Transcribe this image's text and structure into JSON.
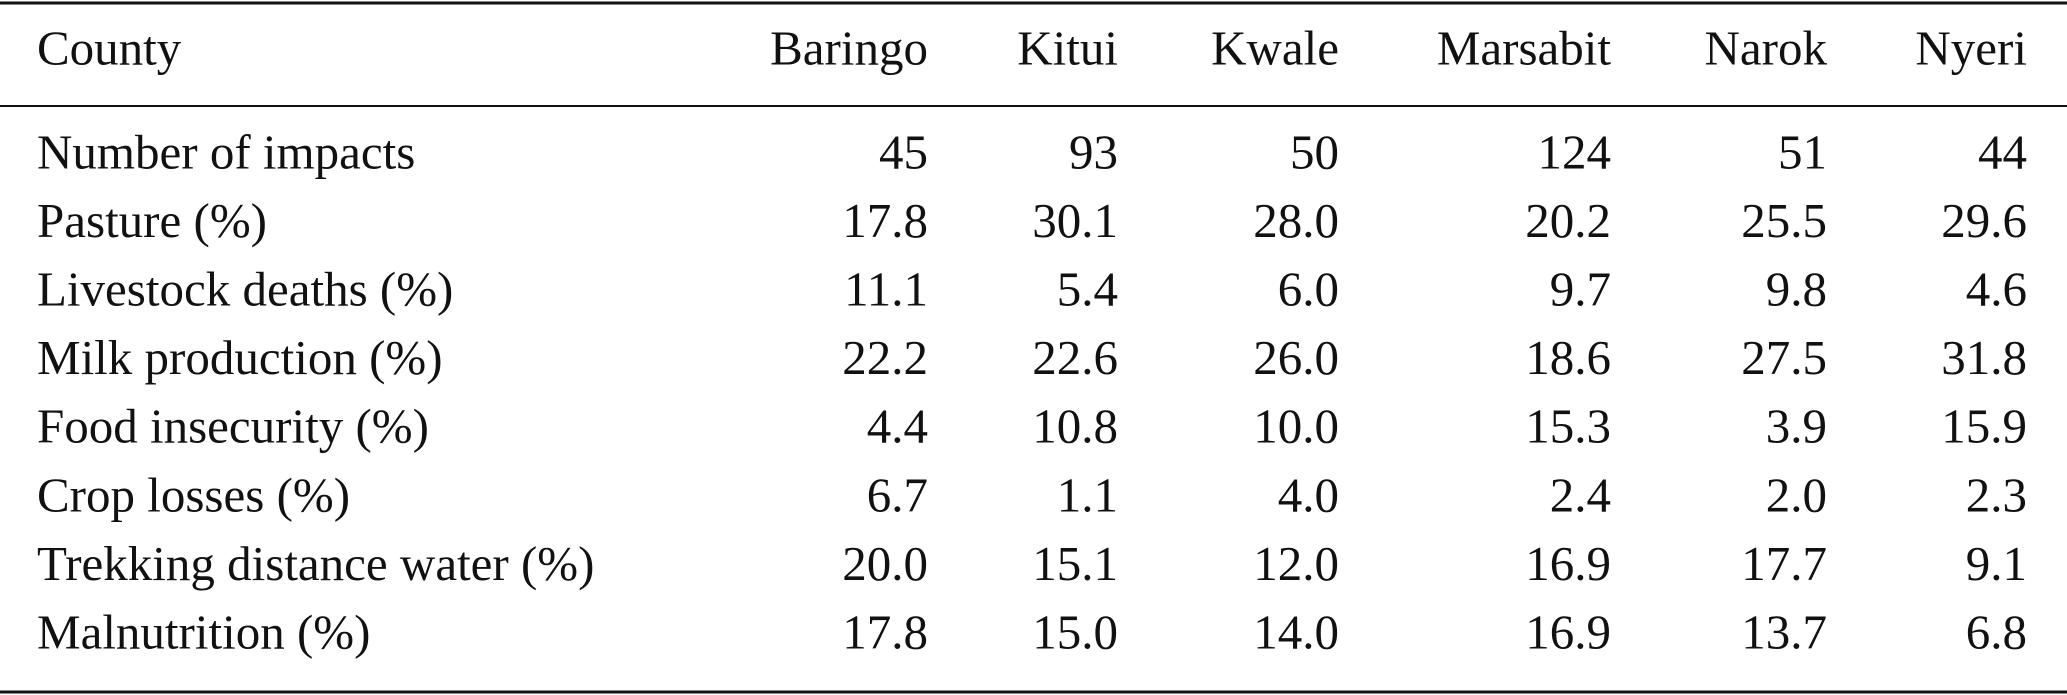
{
  "table": {
    "header": [
      "County",
      "Baringo",
      "Kitui",
      "Kwale",
      "Marsabit",
      "Narok",
      "Nyeri"
    ],
    "rows": [
      [
        "Number of impacts",
        "45",
        "93",
        "50",
        "124",
        "51",
        "44"
      ],
      [
        "Pasture (%)",
        "17.8",
        "30.1",
        "28.0",
        "20.2",
        "25.5",
        "29.6"
      ],
      [
        "Livestock deaths (%)",
        "11.1",
        "5.4",
        "6.0",
        "9.7",
        "9.8",
        "4.6"
      ],
      [
        "Milk production (%)",
        "22.2",
        "22.6",
        "26.0",
        "18.6",
        "27.5",
        "31.8"
      ],
      [
        "Food insecurity (%)",
        "4.4",
        "10.8",
        "10.0",
        "15.3",
        "3.9",
        "15.9"
      ],
      [
        "Crop losses (%)",
        "6.7",
        "1.1",
        "4.0",
        "2.4",
        "2.0",
        "2.3"
      ],
      [
        "Trekking distance water (%)",
        "20.0",
        "15.1",
        "12.0",
        "16.9",
        "17.7",
        "9.1"
      ],
      [
        "Malnutrition (%)",
        "17.8",
        "15.0",
        "14.0",
        "16.9",
        "13.7",
        "6.8"
      ]
    ]
  }
}
